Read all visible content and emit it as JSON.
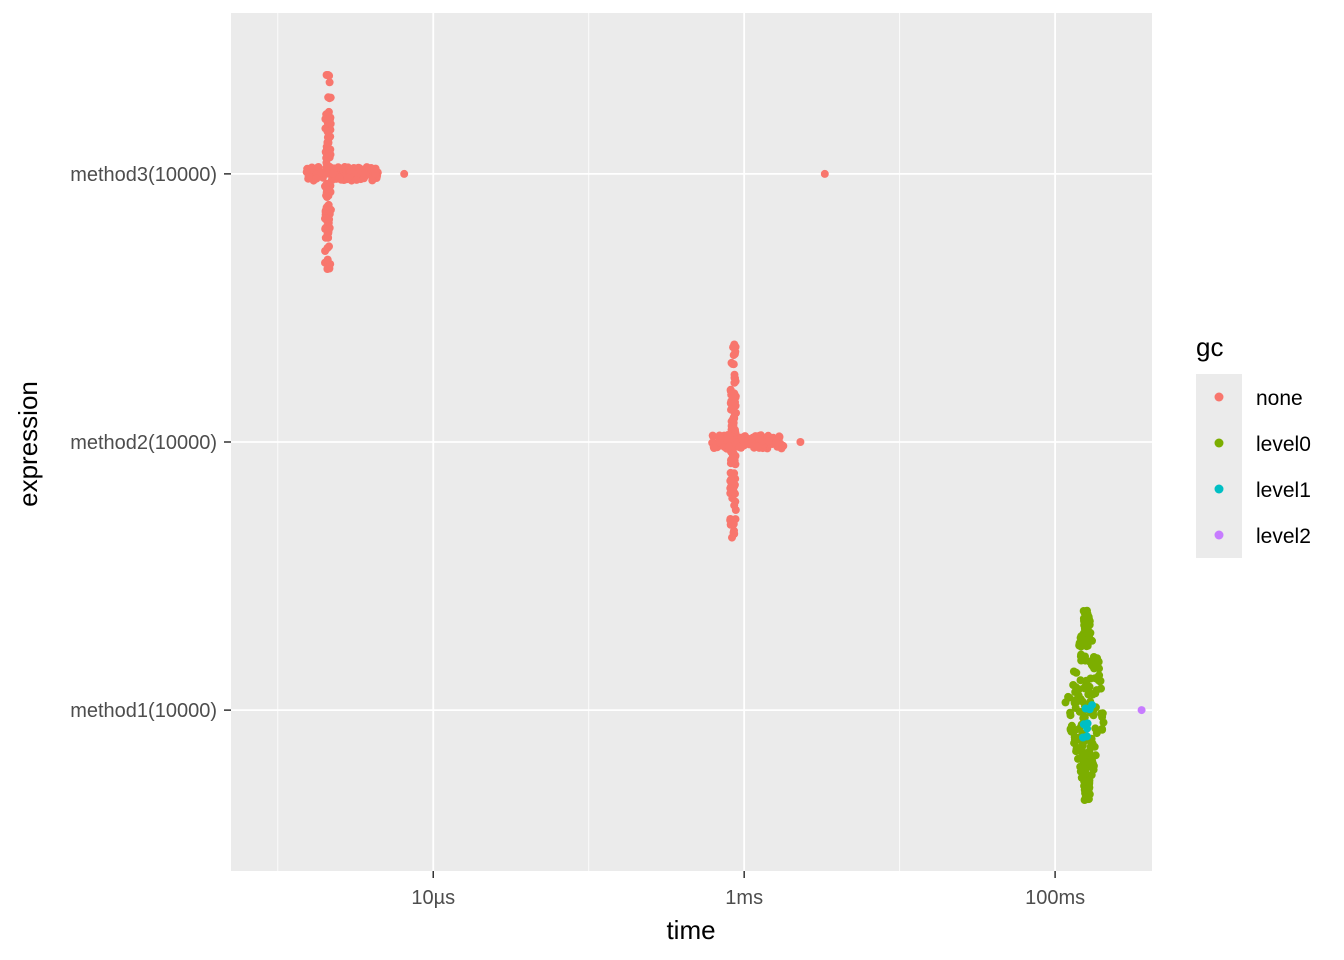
{
  "chart_data": {
    "type": "scatter",
    "title": "",
    "xlabel": "time",
    "ylabel": "expression",
    "x_scale": "log10",
    "x_unit": "seconds",
    "xlim": [
      5e-07,
      0.42
    ],
    "x_ticks": [
      {
        "value": 1e-05,
        "label": "10µs"
      },
      {
        "value": 0.001,
        "label": "1ms"
      },
      {
        "value": 0.1,
        "label": "100ms"
      }
    ],
    "categories": [
      "method1(10000)",
      "method2(10000)",
      "method3(10000)"
    ],
    "grid": true,
    "legend": {
      "title": "gc",
      "position": "right",
      "entries": [
        {
          "name": "none",
          "color": "#F8766D"
        },
        {
          "name": "level0",
          "color": "#7CAE00"
        },
        {
          "name": "level1",
          "color": "#00BFC4"
        },
        {
          "name": "level2",
          "color": "#C77CFF"
        }
      ]
    },
    "series": [
      {
        "name": "none",
        "color": "#F8766D",
        "points": [
          {
            "category": "method3(10000)",
            "x": 2.1e-06,
            "count": 200
          },
          {
            "category": "method3(10000)",
            "x": 6.5e-06
          },
          {
            "category": "method3(10000)",
            "x": 0.0033
          },
          {
            "category": "method2(10000)",
            "x": 0.00085,
            "count": 220
          },
          {
            "category": "method2(10000)",
            "x": 0.0023
          }
        ]
      },
      {
        "name": "level0",
        "color": "#7CAE00",
        "points": [
          {
            "category": "method1(10000)",
            "x": 0.16,
            "count": 220
          }
        ]
      },
      {
        "name": "level1",
        "color": "#00BFC4",
        "points": [
          {
            "category": "method1(10000)",
            "x": 0.165,
            "count": 8
          }
        ]
      },
      {
        "name": "level2",
        "color": "#C77CFF",
        "points": [
          {
            "category": "method1(10000)",
            "x": 0.36
          }
        ]
      }
    ]
  },
  "colors": {
    "panel_background": "#EBEBEB",
    "grid_major": "#FFFFFF",
    "legend_key_background": "#EBEBEB"
  }
}
